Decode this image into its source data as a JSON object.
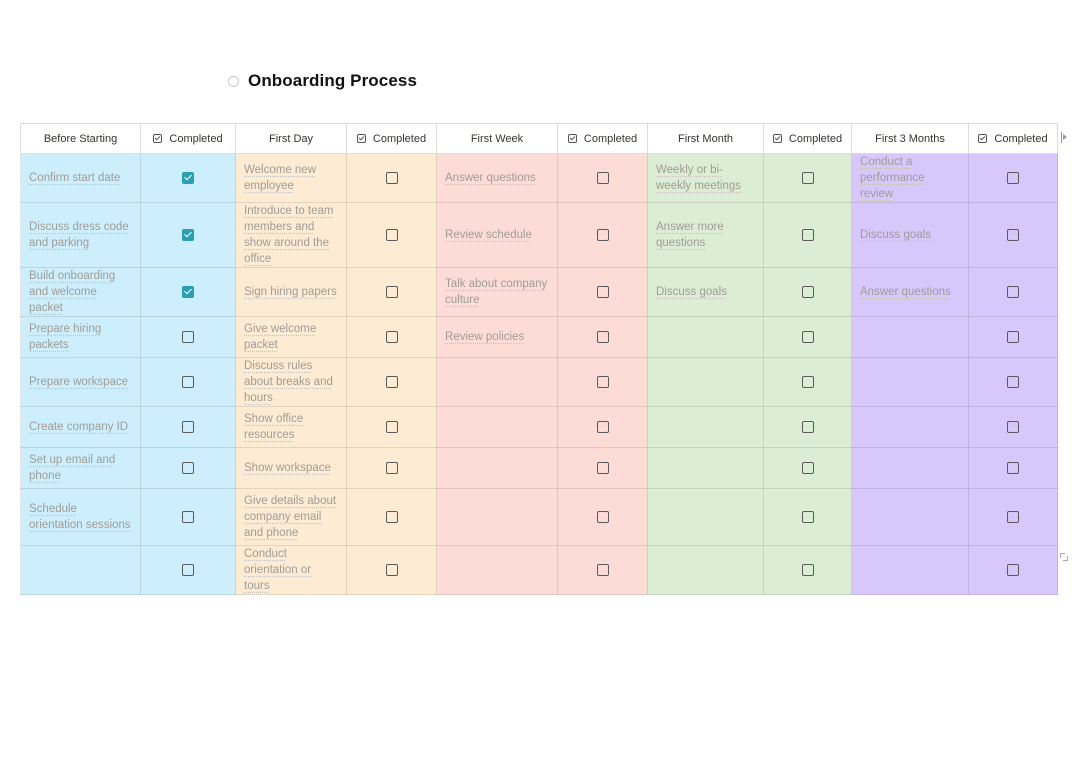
{
  "page": {
    "title": "Onboarding Process",
    "icon": "circle-icon"
  },
  "colors": {
    "before_starting": "#cdeefd",
    "first_day": "#fdebd3",
    "first_week": "#fddcd8",
    "first_month": "#dcedd6",
    "first_3_months": "#d8c7fb",
    "checkbox_checked": "#2b9fb3"
  },
  "columns": [
    {
      "label": "Before Starting",
      "completed_label": "Completed",
      "color": "c-blue"
    },
    {
      "label": "First Day",
      "completed_label": "Completed",
      "color": "c-orange"
    },
    {
      "label": "First Week",
      "completed_label": "Completed",
      "color": "c-red"
    },
    {
      "label": "First Month",
      "completed_label": "Completed",
      "color": "c-green"
    },
    {
      "label": "First 3 Months",
      "completed_label": "Completed",
      "color": "c-purple"
    }
  ],
  "rows": [
    {
      "tasks": [
        "Confirm start date",
        "Welcome new employee",
        "Answer questions",
        "Weekly or bi-weekly meetings",
        "Conduct a performance review"
      ],
      "completed": [
        true,
        false,
        false,
        false,
        false
      ]
    },
    {
      "tasks": [
        "Discuss dress code and parking",
        "Introduce to team members and show around the office",
        "Review schedule",
        "Answer more questions",
        "Discuss goals"
      ],
      "completed": [
        true,
        false,
        false,
        false,
        false
      ]
    },
    {
      "tasks": [
        "Build onboarding and welcome packet",
        "Sign hiring papers",
        "Talk about company culture",
        "Discuss goals",
        "Answer questions"
      ],
      "completed": [
        true,
        false,
        false,
        false,
        false
      ]
    },
    {
      "tasks": [
        "Prepare hiring packets",
        "Give welcome packet",
        "Review policies",
        "",
        ""
      ],
      "completed": [
        false,
        false,
        false,
        false,
        false
      ]
    },
    {
      "tasks": [
        "Prepare workspace",
        "Discuss rules about breaks and hours",
        "",
        "",
        ""
      ],
      "completed": [
        false,
        false,
        false,
        false,
        false
      ]
    },
    {
      "tasks": [
        "Create company ID",
        "Show office resources",
        "",
        "",
        ""
      ],
      "completed": [
        false,
        false,
        false,
        false,
        false
      ]
    },
    {
      "tasks": [
        "Set up email and phone",
        "Show workspace",
        "",
        "",
        ""
      ],
      "completed": [
        false,
        false,
        false,
        false,
        false
      ]
    },
    {
      "tasks": [
        "Schedule orientation sessions",
        "Give details about company email and phone",
        "",
        "",
        ""
      ],
      "completed": [
        false,
        false,
        false,
        false,
        false
      ]
    },
    {
      "tasks": [
        "",
        "Conduct orientation or tours",
        "",
        "",
        ""
      ],
      "completed": [
        false,
        false,
        false,
        false,
        false
      ]
    }
  ]
}
